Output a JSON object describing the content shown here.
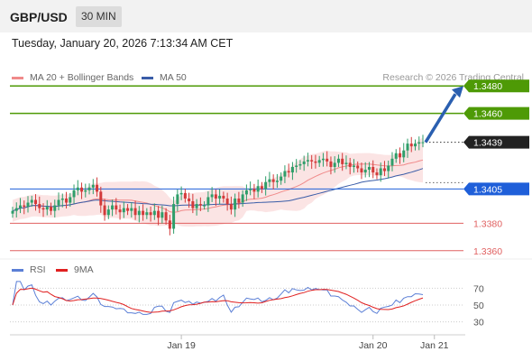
{
  "header": {
    "symbol": "GBP/USD",
    "timeframe": "30 MIN"
  },
  "datetime": "Tuesday, January 20, 2026 7:13:34 AM CET",
  "legend_main": [
    {
      "label": "MA 20 + Bollinger Bands",
      "color": "#f08a8a"
    },
    {
      "label": "MA 50",
      "color": "#3a5da8"
    }
  ],
  "credit": "Research © 2026 Trading Central",
  "chart_data": [
    {
      "type": "candlestick",
      "title": "",
      "price_range": [
        1.335,
        1.349
      ],
      "current_price": 1.3439,
      "levels": [
        {
          "value": 1.348,
          "label": "1.3480",
          "kind": "target",
          "color": "#4e9a06"
        },
        {
          "value": 1.346,
          "label": "1.3460",
          "kind": "resistance",
          "color": "#4e9a06"
        },
        {
          "value": 1.3405,
          "label": "1.3405",
          "kind": "pivot",
          "color": "#1f5fd9"
        },
        {
          "value": 1.338,
          "label": "1.3380",
          "kind": "support",
          "color": "#e06060"
        },
        {
          "value": 1.336,
          "label": "1.3360",
          "kind": "support",
          "color": "#e06060"
        }
      ],
      "current_label": "1.3439",
      "x_ticks": [
        {
          "label": "Jan 19",
          "index": 44
        },
        {
          "label": "Jan 20",
          "index": 94
        },
        {
          "label": "Jan 21",
          "index": 110
        }
      ],
      "closes": [
        1.3389,
        1.3391,
        1.3393,
        1.3392,
        1.3395,
        1.3397,
        1.3394,
        1.3391,
        1.339,
        1.3392,
        1.3389,
        1.3393,
        1.3397,
        1.3398,
        1.3395,
        1.3399,
        1.3404,
        1.3406,
        1.3403,
        1.3404,
        1.3406,
        1.3408,
        1.3403,
        1.3393,
        1.3386,
        1.339,
        1.3393,
        1.339,
        1.3388,
        1.3391,
        1.3389,
        1.3391,
        1.3386,
        1.3389,
        1.3386,
        1.3388,
        1.3386,
        1.3389,
        1.3384,
        1.3388,
        1.3382,
        1.3376,
        1.3394,
        1.3401,
        1.3402,
        1.3398,
        1.3396,
        1.3391,
        1.3394,
        1.3393,
        1.3393,
        1.3399,
        1.3401,
        1.3398,
        1.34,
        1.3398,
        1.3394,
        1.339,
        1.3398,
        1.3395,
        1.3401,
        1.3404,
        1.3405,
        1.3403,
        1.3407,
        1.3405,
        1.341,
        1.3412,
        1.341,
        1.3411,
        1.3414,
        1.3418,
        1.3417,
        1.3421,
        1.3422,
        1.3423,
        1.3425,
        1.3426,
        1.3425,
        1.3424,
        1.3426,
        1.3427,
        1.3425,
        1.3421,
        1.3424,
        1.3427,
        1.3423,
        1.3424,
        1.3421,
        1.3422,
        1.342,
        1.3417,
        1.3419,
        1.3421,
        1.3417,
        1.3415,
        1.342,
        1.3418,
        1.3422,
        1.3427,
        1.3431,
        1.3428,
        1.3433,
        1.3438,
        1.3436,
        1.3438,
        1.3439,
        1.3439
      ],
      "ma20_description": "MA 20 with Bollinger Bands",
      "ma50_description": "MA 50"
    },
    {
      "type": "line",
      "legend": [
        {
          "label": "RSI",
          "color": "#5b7fd6"
        },
        {
          "label": "9MA",
          "color": "#e02020"
        }
      ],
      "y_ticks": [
        70,
        50,
        30
      ],
      "ylim": [
        20,
        80
      ]
    }
  ]
}
